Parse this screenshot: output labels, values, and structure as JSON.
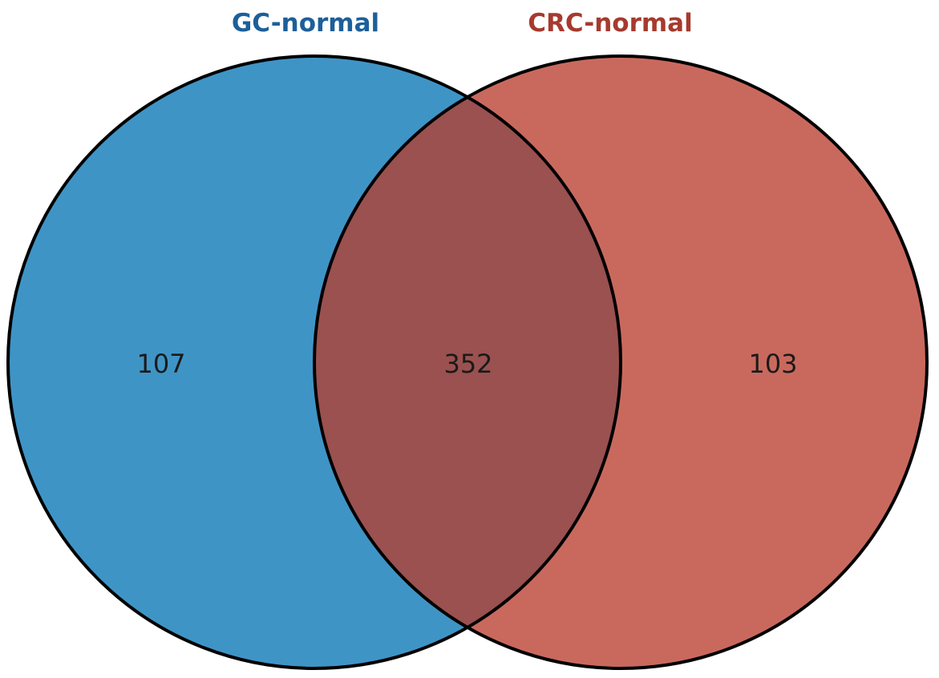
{
  "venn": {
    "sets": [
      {
        "name": "GC-normal",
        "only_count": "107",
        "color": "#3f94c6",
        "title_color": "#1d5f9a"
      },
      {
        "name": "CRC-normal",
        "only_count": "103",
        "color": "#c9695e",
        "title_color": "#a63a2e"
      }
    ],
    "intersection": {
      "count": "352",
      "color": "#9a5150"
    },
    "outline_color": "#000000"
  }
}
